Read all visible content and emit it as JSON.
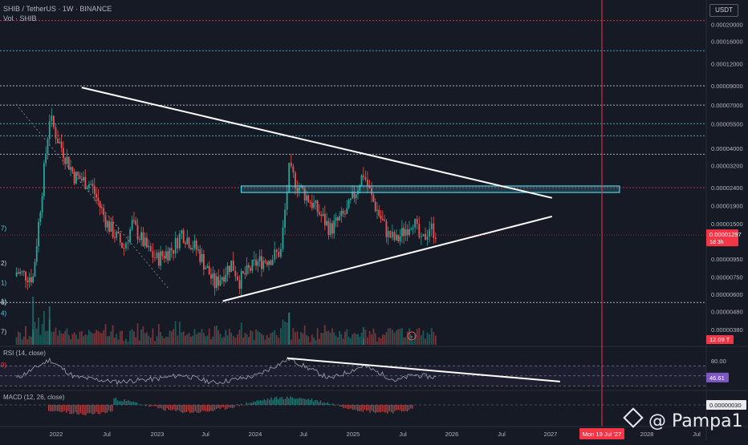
{
  "header": {
    "symbol_line": "SHIB / TetherUS · 1W · BINANCE",
    "volume_line": "Vol · SHIB"
  },
  "currency_button": "USDT",
  "watermark": "@ Pampa1",
  "colors": {
    "background": "#161a25",
    "up": "#26a69a",
    "down": "#ef5350",
    "trendline": "#ffffff",
    "zone": "#4dd0e1",
    "cursor": "#f23645",
    "price_tag": "#f23645",
    "level_white": "#d1d4dc",
    "level_teal": "#4dd0e1",
    "level_red": "#f23645"
  },
  "left_level_labels": [
    {
      "text": "2)",
      "price": 9e-06,
      "color": "level_white"
    },
    {
      "text": "1)",
      "price": 7e-06,
      "color": "level_teal"
    },
    {
      "text": "1)",
      "price": 5.5e-06,
      "color": "level_teal"
    },
    {
      "text": "4)",
      "price": 4.7e-06,
      "color": "level_teal"
    },
    {
      "text": "7)",
      "price": 3.7e-06,
      "color": "level_white"
    },
    {
      "text": "9)",
      "price": 2.4e-06,
      "color": "level_red"
    },
    {
      "text": "6)",
      "price": 5.4e-06,
      "color": "level_white"
    },
    {
      "text": "7)",
      "price": 1.42e-05,
      "color": "level_teal"
    }
  ],
  "chart_data": [
    {
      "type": "candlestick",
      "title": "SHIB / TetherUS · 1W · BINANCE",
      "scale": "log",
      "y_ticks": [
        "0.00020000",
        "0.00016000",
        "0.00012000",
        "0.00009000",
        "0.00007000",
        "0.00005500",
        "0.00004000",
        "0.00003200",
        "0.00002400",
        "0.00001900",
        "0.00001500",
        "0.00000950",
        "0.00000750",
        "0.00000600",
        "0.00000480",
        "0.00000380"
      ],
      "x_ticks": [
        "2022",
        "Jul",
        "2023",
        "Jul",
        "2024",
        "Jul",
        "2025",
        "Jul",
        "2026",
        "Jul",
        "2027",
        "Mon 19 Jul '27",
        "2028",
        "Jul"
      ],
      "last_price": "0.00001297",
      "countdown": "1d 3h",
      "volume_last": "12.09 T",
      "cursor_date": "Mon 19 Jul '27",
      "levels": [
        0.00021,
        0.000142,
        9e-05,
        7e-05,
        5.5e-05,
        4.7e-05,
        3.7e-05,
        2.4e-05,
        5.4e-06
      ],
      "zone": {
        "top": 2.45e-05,
        "bottom": 2.3e-05,
        "from": "2024-04",
        "to": "2027-07"
      },
      "triangle": {
        "upper_line": [
          {
            "date": "2021-10",
            "price": 8.8e-05
          },
          {
            "date": "2026-05",
            "price": 2.1e-05
          }
        ],
        "lower_line": [
          {
            "date": "2023-06",
            "price": 5.5e-06
          },
          {
            "date": "2026-05",
            "price": 1.65e-05
          }
        ]
      },
      "weekly_close_path": [
        {
          "date": "2021-06",
          "price": 8e-06
        },
        {
          "date": "2021-08",
          "price": 7.5e-06
        },
        {
          "date": "2021-10",
          "price": 6e-05
        },
        {
          "date": "2021-11",
          "price": 4.5e-05
        },
        {
          "date": "2022-01",
          "price": 2.8e-05
        },
        {
          "date": "2022-03",
          "price": 2.5e-05
        },
        {
          "date": "2022-05",
          "price": 1.5e-05
        },
        {
          "date": "2022-07",
          "price": 1.1e-05
        },
        {
          "date": "2022-08",
          "price": 1.5e-05
        },
        {
          "date": "2022-10",
          "price": 1.05e-05
        },
        {
          "date": "2022-11",
          "price": 9.5e-06
        },
        {
          "date": "2023-01",
          "price": 1.1e-05
        },
        {
          "date": "2023-02",
          "price": 1.35e-05
        },
        {
          "date": "2023-04",
          "price": 1.05e-05
        },
        {
          "date": "2023-06",
          "price": 6.8e-06
        },
        {
          "date": "2023-08",
          "price": 9e-06
        },
        {
          "date": "2023-09",
          "price": 7.2e-06
        },
        {
          "date": "2023-11",
          "price": 9e-06
        },
        {
          "date": "2024-01",
          "price": 9.8e-06
        },
        {
          "date": "2024-02",
          "price": 1.05e-05
        },
        {
          "date": "2024-03",
          "price": 3e-05
        },
        {
          "date": "2024-04",
          "price": 2.5e-05
        },
        {
          "date": "2024-06",
          "price": 1.9e-05
        },
        {
          "date": "2024-08",
          "price": 1.4e-05
        },
        {
          "date": "2024-10",
          "price": 1.75e-05
        },
        {
          "date": "2024-12",
          "price": 2.9e-05
        },
        {
          "date": "2025-01",
          "price": 2.1e-05
        },
        {
          "date": "2025-03",
          "price": 1.3e-05
        },
        {
          "date": "2025-04",
          "price": 1.2e-05
        },
        {
          "date": "2025-06",
          "price": 1.6e-05
        },
        {
          "date": "2025-07",
          "price": 1.15e-05
        },
        {
          "date": "2025-08",
          "price": 1.45e-05
        },
        {
          "date": "2025-09",
          "price": 1.3e-05
        }
      ]
    },
    {
      "type": "line",
      "title": "RSI (14, close)",
      "y_ticks": [
        "80.00"
      ],
      "last_value": "46.61",
      "band": [
        30,
        70
      ],
      "trendline": [
        {
          "date": "2024-03",
          "value": 82
        },
        {
          "date": "2026-05",
          "value": 45
        }
      ],
      "path": [
        {
          "date": "2021-06",
          "value": 45
        },
        {
          "date": "2021-10",
          "value": 82
        },
        {
          "date": "2022-01",
          "value": 48
        },
        {
          "date": "2022-06",
          "value": 38
        },
        {
          "date": "2022-11",
          "value": 44
        },
        {
          "date": "2023-02",
          "value": 52
        },
        {
          "date": "2023-06",
          "value": 36
        },
        {
          "date": "2023-11",
          "value": 50
        },
        {
          "date": "2024-03",
          "value": 84
        },
        {
          "date": "2024-08",
          "value": 44
        },
        {
          "date": "2024-12",
          "value": 70
        },
        {
          "date": "2025-04",
          "value": 40
        },
        {
          "date": "2025-06",
          "value": 52
        },
        {
          "date": "2025-09",
          "value": 46.61
        }
      ]
    },
    {
      "type": "bar",
      "title": "MACD (12, 26, close)",
      "last_value": "0.00000030"
    }
  ]
}
